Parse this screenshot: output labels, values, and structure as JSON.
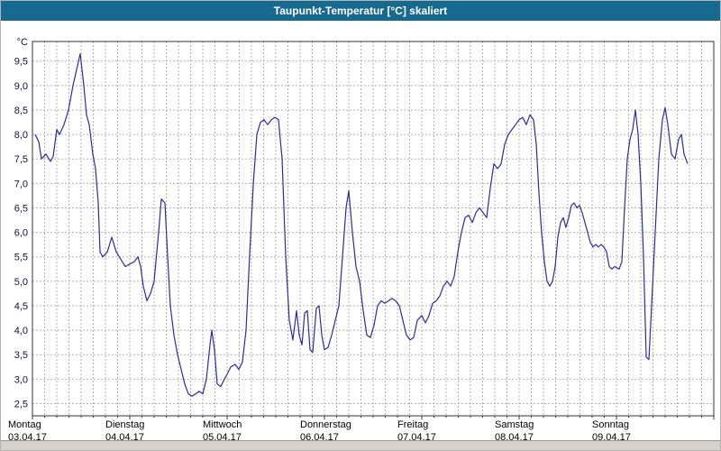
{
  "window": {
    "title": "Taupunkt-Temperatur [°C] skaliert"
  },
  "colors": {
    "titlebar_bg": "#176a8f",
    "titlebar_text": "#ffffff",
    "line": "#2b2ba6",
    "grid": "#b0b0b0",
    "plot_border": "#333333",
    "axis_text": "#101035",
    "x_label_text": "#000000",
    "bottom_strip": "#d6d2ca"
  },
  "chart_data": {
    "type": "line",
    "title": "Taupunkt-Temperatur [°C] skaliert",
    "ylabel": "°C",
    "xlabel": "",
    "ylim": [
      2.25,
      9.9
    ],
    "x_range_days": [
      0,
      7
    ],
    "grid": {
      "y_step_deg": 0.5,
      "x_step_hours": 3,
      "style": "dashed"
    },
    "legend": "none",
    "y_ticks": [
      {
        "value": 9.5,
        "label": "9,5"
      },
      {
        "value": 9.0,
        "label": "9,0"
      },
      {
        "value": 8.5,
        "label": "8,5"
      },
      {
        "value": 8.0,
        "label": "8,0"
      },
      {
        "value": 7.5,
        "label": "7,5"
      },
      {
        "value": 7.0,
        "label": "7,0"
      },
      {
        "value": 6.5,
        "label": "6,5"
      },
      {
        "value": 6.0,
        "label": "6,0"
      },
      {
        "value": 5.5,
        "label": "5,5"
      },
      {
        "value": 5.0,
        "label": "5,0"
      },
      {
        "value": 4.5,
        "label": "4,5"
      },
      {
        "value": 4.0,
        "label": "4,0"
      },
      {
        "value": 3.5,
        "label": "3,5"
      },
      {
        "value": 3.0,
        "label": "3,0"
      },
      {
        "value": 2.5,
        "label": "2,5"
      }
    ],
    "x_ticks": [
      {
        "name": "Montag",
        "date": "03.04.17"
      },
      {
        "name": "Dienstag",
        "date": "04.04.17"
      },
      {
        "name": "Mittwoch",
        "date": "05.04.17"
      },
      {
        "name": "Donnerstag",
        "date": "06.04.17"
      },
      {
        "name": "Freitag",
        "date": "07.04.17"
      },
      {
        "name": "Samstag",
        "date": "08.04.17"
      },
      {
        "name": "Sonntag",
        "date": "09.04.17"
      }
    ],
    "series": [
      {
        "name": "Taupunkt-Temperatur",
        "unit": "°C",
        "points": [
          [
            0.028,
            8.0
          ],
          [
            0.065,
            7.85
          ],
          [
            0.093,
            7.5
          ],
          [
            0.139,
            7.6
          ],
          [
            0.185,
            7.45
          ],
          [
            0.213,
            7.55
          ],
          [
            0.25,
            8.1
          ],
          [
            0.278,
            8.0
          ],
          [
            0.324,
            8.2
          ],
          [
            0.37,
            8.5
          ],
          [
            0.417,
            9.0
          ],
          [
            0.491,
            9.65
          ],
          [
            0.528,
            9.0
          ],
          [
            0.556,
            8.4
          ],
          [
            0.583,
            8.2
          ],
          [
            0.62,
            7.6
          ],
          [
            0.648,
            7.3
          ],
          [
            0.676,
            6.6
          ],
          [
            0.694,
            5.6
          ],
          [
            0.722,
            5.5
          ],
          [
            0.769,
            5.6
          ],
          [
            0.815,
            5.9
          ],
          [
            0.861,
            5.6
          ],
          [
            0.907,
            5.45
          ],
          [
            0.954,
            5.3
          ],
          [
            1.0,
            5.35
          ],
          [
            1.046,
            5.4
          ],
          [
            1.083,
            5.5
          ],
          [
            1.111,
            5.3
          ],
          [
            1.139,
            4.9
          ],
          [
            1.176,
            4.6
          ],
          [
            1.213,
            4.75
          ],
          [
            1.25,
            5.0
          ],
          [
            1.296,
            6.0
          ],
          [
            1.324,
            6.68
          ],
          [
            1.361,
            6.6
          ],
          [
            1.389,
            5.5
          ],
          [
            1.417,
            4.5
          ],
          [
            1.454,
            3.9
          ],
          [
            1.491,
            3.5
          ],
          [
            1.528,
            3.2
          ],
          [
            1.565,
            2.9
          ],
          [
            1.602,
            2.7
          ],
          [
            1.639,
            2.65
          ],
          [
            1.676,
            2.7
          ],
          [
            1.713,
            2.75
          ],
          [
            1.75,
            2.7
          ],
          [
            1.787,
            3.0
          ],
          [
            1.824,
            3.7
          ],
          [
            1.843,
            4.0
          ],
          [
            1.87,
            3.6
          ],
          [
            1.898,
            2.9
          ],
          [
            1.935,
            2.85
          ],
          [
            1.972,
            3.0
          ],
          [
            2.0,
            3.1
          ],
          [
            2.037,
            3.25
          ],
          [
            2.083,
            3.3
          ],
          [
            2.12,
            3.2
          ],
          [
            2.157,
            3.35
          ],
          [
            2.194,
            4.0
          ],
          [
            2.231,
            5.5
          ],
          [
            2.269,
            7.0
          ],
          [
            2.306,
            8.0
          ],
          [
            2.343,
            8.25
          ],
          [
            2.38,
            8.3
          ],
          [
            2.417,
            8.2
          ],
          [
            2.454,
            8.3
          ],
          [
            2.491,
            8.35
          ],
          [
            2.528,
            8.3
          ],
          [
            2.565,
            7.5
          ],
          [
            2.602,
            5.5
          ],
          [
            2.639,
            4.2
          ],
          [
            2.676,
            3.8
          ],
          [
            2.713,
            4.4
          ],
          [
            2.741,
            3.9
          ],
          [
            2.769,
            3.7
          ],
          [
            2.796,
            4.35
          ],
          [
            2.824,
            4.4
          ],
          [
            2.852,
            3.6
          ],
          [
            2.88,
            3.55
          ],
          [
            2.917,
            4.45
          ],
          [
            2.944,
            4.5
          ],
          [
            2.972,
            3.9
          ],
          [
            3.0,
            3.6
          ],
          [
            3.037,
            3.65
          ],
          [
            3.074,
            3.9
          ],
          [
            3.111,
            4.2
          ],
          [
            3.148,
            4.5
          ],
          [
            3.185,
            5.5
          ],
          [
            3.222,
            6.5
          ],
          [
            3.25,
            6.85
          ],
          [
            3.287,
            6.0
          ],
          [
            3.324,
            5.3
          ],
          [
            3.361,
            5.0
          ],
          [
            3.398,
            4.4
          ],
          [
            3.435,
            3.9
          ],
          [
            3.472,
            3.85
          ],
          [
            3.509,
            4.1
          ],
          [
            3.546,
            4.5
          ],
          [
            3.583,
            4.6
          ],
          [
            3.62,
            4.55
          ],
          [
            3.657,
            4.6
          ],
          [
            3.694,
            4.65
          ],
          [
            3.731,
            4.6
          ],
          [
            3.769,
            4.5
          ],
          [
            3.806,
            4.2
          ],
          [
            3.843,
            3.9
          ],
          [
            3.88,
            3.8
          ],
          [
            3.917,
            3.85
          ],
          [
            3.954,
            4.2
          ],
          [
            4.0,
            4.3
          ],
          [
            4.037,
            4.15
          ],
          [
            4.074,
            4.3
          ],
          [
            4.111,
            4.55
          ],
          [
            4.148,
            4.6
          ],
          [
            4.185,
            4.7
          ],
          [
            4.222,
            4.9
          ],
          [
            4.259,
            5.0
          ],
          [
            4.296,
            4.9
          ],
          [
            4.333,
            5.1
          ],
          [
            4.37,
            5.6
          ],
          [
            4.407,
            6.0
          ],
          [
            4.444,
            6.3
          ],
          [
            4.481,
            6.35
          ],
          [
            4.519,
            6.2
          ],
          [
            4.556,
            6.4
          ],
          [
            4.593,
            6.5
          ],
          [
            4.63,
            6.4
          ],
          [
            4.667,
            6.3
          ],
          [
            4.704,
            6.9
          ],
          [
            4.741,
            7.4
          ],
          [
            4.778,
            7.3
          ],
          [
            4.815,
            7.4
          ],
          [
            4.852,
            7.8
          ],
          [
            4.889,
            8.0
          ],
          [
            4.926,
            8.1
          ],
          [
            4.963,
            8.2
          ],
          [
            5.0,
            8.3
          ],
          [
            5.037,
            8.35
          ],
          [
            5.074,
            8.2
          ],
          [
            5.111,
            8.4
          ],
          [
            5.148,
            8.3
          ],
          [
            5.176,
            7.8
          ],
          [
            5.204,
            6.8
          ],
          [
            5.231,
            6.0
          ],
          [
            5.259,
            5.4
          ],
          [
            5.287,
            5.0
          ],
          [
            5.315,
            4.9
          ],
          [
            5.343,
            5.0
          ],
          [
            5.37,
            5.3
          ],
          [
            5.398,
            5.9
          ],
          [
            5.426,
            6.2
          ],
          [
            5.454,
            6.3
          ],
          [
            5.481,
            6.1
          ],
          [
            5.509,
            6.3
          ],
          [
            5.537,
            6.55
          ],
          [
            5.565,
            6.6
          ],
          [
            5.593,
            6.5
          ],
          [
            5.62,
            6.55
          ],
          [
            5.648,
            6.4
          ],
          [
            5.676,
            6.2
          ],
          [
            5.704,
            6.0
          ],
          [
            5.731,
            5.8
          ],
          [
            5.759,
            5.7
          ],
          [
            5.787,
            5.75
          ],
          [
            5.815,
            5.7
          ],
          [
            5.843,
            5.75
          ],
          [
            5.87,
            5.7
          ],
          [
            5.898,
            5.6
          ],
          [
            5.926,
            5.3
          ],
          [
            5.954,
            5.25
          ],
          [
            5.981,
            5.3
          ],
          [
            6.028,
            5.25
          ],
          [
            6.056,
            5.4
          ],
          [
            6.083,
            6.5
          ],
          [
            6.111,
            7.5
          ],
          [
            6.139,
            7.9
          ],
          [
            6.167,
            8.1
          ],
          [
            6.194,
            8.5
          ],
          [
            6.222,
            8.0
          ],
          [
            6.25,
            7.0
          ],
          [
            6.278,
            5.5
          ],
          [
            6.306,
            3.45
          ],
          [
            6.333,
            3.4
          ],
          [
            6.361,
            4.5
          ],
          [
            6.398,
            6.0
          ],
          [
            6.435,
            7.5
          ],
          [
            6.472,
            8.3
          ],
          [
            6.5,
            8.55
          ],
          [
            6.528,
            8.2
          ],
          [
            6.565,
            7.6
          ],
          [
            6.602,
            7.5
          ],
          [
            6.639,
            7.9
          ],
          [
            6.667,
            8.0
          ],
          [
            6.694,
            7.6
          ],
          [
            6.731,
            7.4
          ]
        ]
      }
    ]
  }
}
